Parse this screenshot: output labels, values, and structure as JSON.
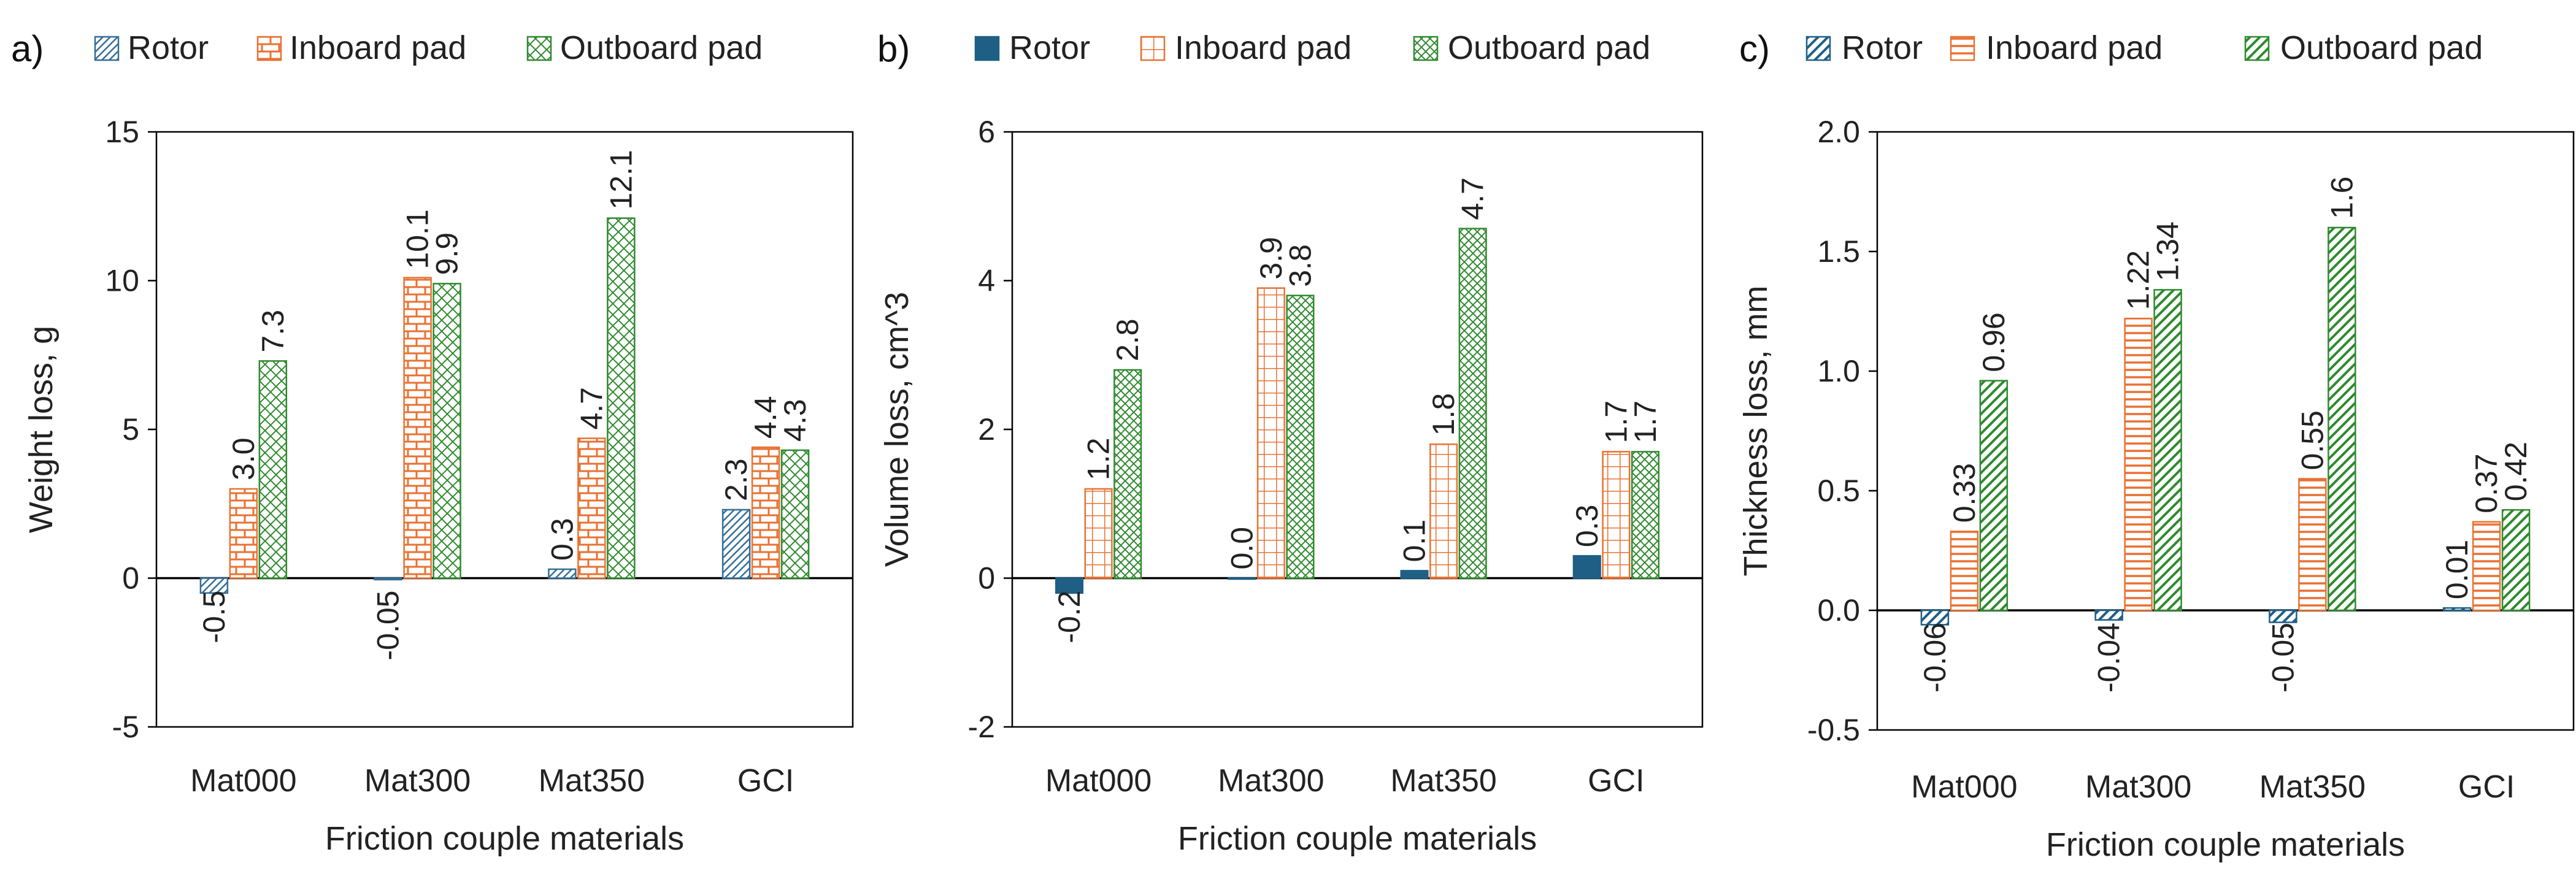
{
  "colors": {
    "rotor": "#336E96",
    "inboard": "#E97132",
    "outboard": "#2F8A2F",
    "axis": "#000000",
    "gridline": "#bfbfbf"
  },
  "chart_data": [
    {
      "type": "bar",
      "panel_label": "a)",
      "categories": [
        "Mat000",
        "Mat300",
        "Mat350",
        "GCI"
      ],
      "series": [
        {
          "name": "Rotor",
          "values": [
            -0.5,
            -0.05,
            0.3,
            2.3
          ],
          "labels": [
            "-0.5",
            "-0.05",
            "0.3",
            "2.3"
          ],
          "pattern": "diag"
        },
        {
          "name": "Inboard pad",
          "values": [
            3.0,
            10.1,
            4.7,
            4.4
          ],
          "labels": [
            "3.0",
            "10.1",
            "4.7",
            "4.4"
          ],
          "pattern": "brick"
        },
        {
          "name": "Outboard pad",
          "values": [
            7.3,
            9.9,
            12.1,
            4.3
          ],
          "labels": [
            "7.3",
            "9.9",
            "12.1",
            "4.3"
          ],
          "pattern": "cross"
        }
      ],
      "xlabel": "Friction couple materials",
      "ylabel": "Weight loss, g",
      "ylim": [
        -5,
        15
      ],
      "yticks": [
        -5,
        0,
        5,
        10,
        15
      ],
      "ytick_labels": [
        "-5",
        "0",
        "5",
        "10",
        "15"
      ]
    },
    {
      "type": "bar",
      "panel_label": "b)",
      "categories": [
        "Mat000",
        "Mat300",
        "Mat350",
        "GCI"
      ],
      "series": [
        {
          "name": "Rotor",
          "values": [
            -0.2,
            0.0,
            0.1,
            0.3
          ],
          "labels": [
            "-0.2",
            "0.0",
            "0.1",
            "0.3"
          ],
          "pattern": "solid"
        },
        {
          "name": "Inboard pad",
          "values": [
            1.2,
            3.9,
            1.8,
            1.7
          ],
          "labels": [
            "1.2",
            "3.9",
            "1.8",
            "1.7"
          ],
          "pattern": "grid"
        },
        {
          "name": "Outboard pad",
          "values": [
            2.8,
            3.8,
            4.7,
            1.7
          ],
          "labels": [
            "2.8",
            "3.8",
            "4.7",
            "1.7"
          ],
          "pattern": "xhatch"
        }
      ],
      "xlabel": "Friction couple materials",
      "ylabel": "Volume loss, cm^3",
      "ylim": [
        -2,
        6
      ],
      "yticks": [
        -2,
        0,
        2,
        4,
        6
      ],
      "ytick_labels": [
        "-2",
        "0",
        "2",
        "4",
        "6"
      ]
    },
    {
      "type": "bar",
      "panel_label": "c)",
      "categories": [
        "Mat000",
        "Mat300",
        "Mat350",
        "GCI"
      ],
      "series": [
        {
          "name": "Rotor",
          "values": [
            -0.06,
            -0.04,
            -0.05,
            0.01
          ],
          "labels": [
            "-0.06",
            "-0.04",
            "-0.05",
            "0.01"
          ],
          "pattern": "wdiag"
        },
        {
          "name": "Inboard pad",
          "values": [
            0.33,
            1.22,
            0.55,
            0.37
          ],
          "labels": [
            "0.33",
            "1.22",
            "0.55",
            "0.37"
          ],
          "pattern": "hlines"
        },
        {
          "name": "Outboard pad",
          "values": [
            0.96,
            1.34,
            1.6,
            0.42
          ],
          "labels": [
            "0.96",
            "1.34",
            "1.6",
            "0.42"
          ],
          "pattern": "wdiag"
        }
      ],
      "xlabel": "Friction couple materials",
      "ylabel": "Thickness loss, mm",
      "ylim": [
        -0.5,
        2.0
      ],
      "yticks": [
        -0.5,
        0.0,
        0.5,
        1.0,
        1.5,
        2.0
      ],
      "ytick_labels": [
        "-0.5",
        "0.0",
        "0.5",
        "1.0",
        "1.5",
        "2.0"
      ]
    }
  ]
}
